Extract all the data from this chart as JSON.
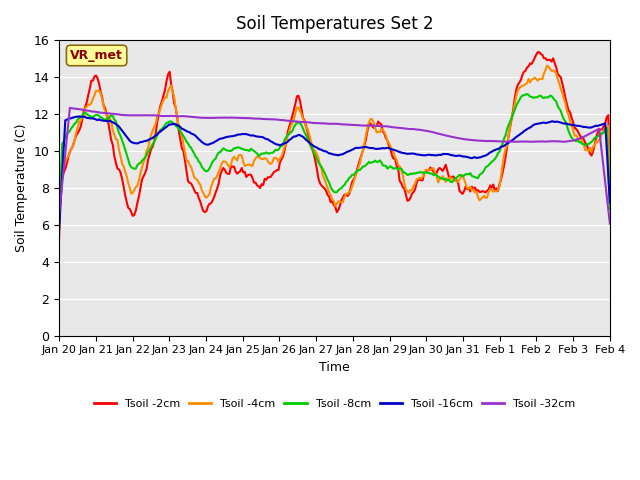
{
  "title": "Soil Temperatures Set 2",
  "xlabel": "Time",
  "ylabel": "Soil Temperature (C)",
  "ylim": [
    0,
    16
  ],
  "yticks": [
    0,
    2,
    4,
    6,
    8,
    10,
    12,
    14,
    16
  ],
  "xtick_labels": [
    "Jan 20",
    "Jan 21",
    "Jan 22",
    "Jan 23",
    "Jan 24",
    "Jan 25",
    "Jan 26",
    "Jan 27",
    "Jan 28",
    "Jan 29",
    "Jan 30",
    "Jan 31",
    "Feb 1",
    "Feb 2",
    "Feb 3",
    "Feb 4"
  ],
  "n_days": 15,
  "annotation_text": "VR_met",
  "annotation_color": "#8B0000",
  "annotation_bg": "#FFFF99",
  "bg_color": "#E8E8E8",
  "line_colors": [
    "#FF0000",
    "#FF8C00",
    "#00CC00",
    "#0000CD",
    "#9932CC"
  ],
  "line_labels": [
    "Tsoil -2cm",
    "Tsoil -4cm",
    "Tsoil -8cm",
    "Tsoil -16cm",
    "Tsoil -32cm"
  ],
  "line_width": 1.5
}
